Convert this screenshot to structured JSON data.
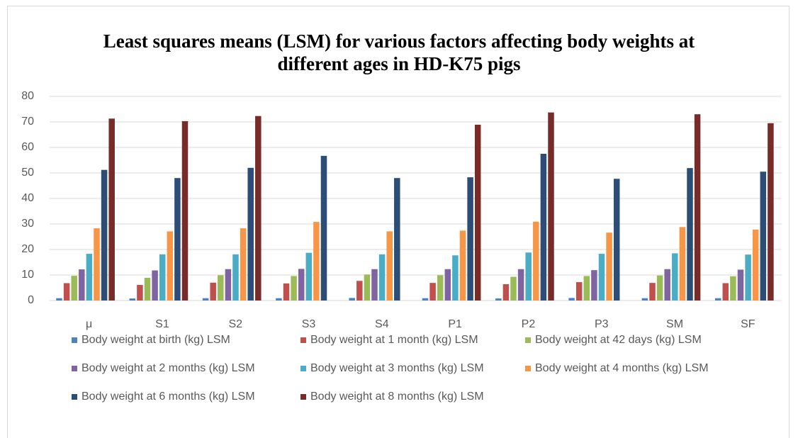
{
  "chart_data": {
    "type": "bar",
    "title": "Least squares means (LSM) for various factors affecting body weights at different ages in HD-K75 pigs",
    "categories": [
      "μ",
      "S1",
      "S2",
      "S3",
      "S4",
      "P1",
      "P2",
      "P3",
      "SM",
      "SF"
    ],
    "series": [
      {
        "name": "Body weight at birth (kg) LSM",
        "color": "#4f81bd",
        "values": [
          0.9,
          0.8,
          0.9,
          0.9,
          1.0,
          0.9,
          0.8,
          1.0,
          0.9,
          0.9
        ]
      },
      {
        "name": "Body weight at 1 month (kg) LSM",
        "color": "#c0504d",
        "values": [
          6.8,
          6.1,
          7.0,
          6.7,
          7.7,
          6.9,
          6.4,
          7.2,
          6.9,
          6.8
        ]
      },
      {
        "name": "Body weight at 42 days (kg) LSM",
        "color": "#9bbb59",
        "values": [
          9.7,
          8.9,
          9.9,
          9.6,
          10.2,
          9.9,
          9.3,
          9.6,
          9.8,
          9.5
        ]
      },
      {
        "name": "Body weight at 2 months (kg) LSM",
        "color": "#8064a2",
        "values": [
          12.2,
          11.8,
          12.3,
          12.4,
          12.3,
          12.3,
          12.3,
          11.9,
          12.3,
          12.1
        ]
      },
      {
        "name": "Body weight at 3 months (kg) LSM",
        "color": "#4bacc6",
        "values": [
          18.3,
          18.1,
          18.1,
          18.7,
          18.1,
          17.7,
          18.8,
          18.3,
          18.5,
          18.0
        ]
      },
      {
        "name": "Body weight at 4 months (kg) LSM",
        "color": "#f79646",
        "values": [
          28.3,
          27.1,
          28.3,
          30.8,
          27.1,
          27.4,
          30.9,
          26.6,
          28.8,
          27.8
        ]
      },
      {
        "name": "Body weight at 6 months (kg) LSM",
        "color": "#2c4d75",
        "values": [
          51.2,
          48.0,
          52.0,
          56.7,
          48.0,
          48.3,
          57.5,
          47.7,
          51.9,
          50.5
        ]
      },
      {
        "name": "Body weight at 8 months (kg) LSM",
        "color": "#772c2a",
        "values": [
          71.3,
          70.3,
          72.3,
          null,
          null,
          68.9,
          73.7,
          null,
          73.0,
          69.5
        ]
      }
    ],
    "ylim": [
      0,
      80
    ],
    "yticks": [
      0,
      10,
      20,
      30,
      40,
      50,
      60,
      70,
      80
    ],
    "grid": true
  }
}
